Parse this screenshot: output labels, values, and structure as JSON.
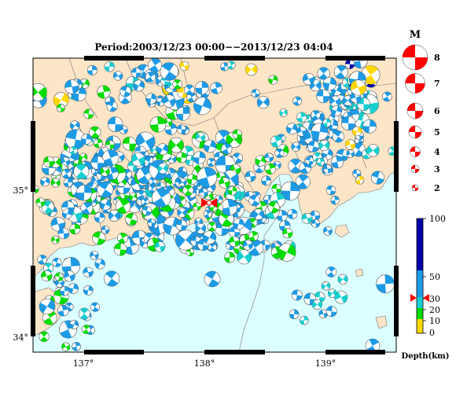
{
  "title": "Period:2003/12/23 00:00−−2013/12/23 04:04",
  "x_axis": {
    "ticks": [
      "137°",
      "138°",
      "139°"
    ]
  },
  "y_axis": {
    "ticks": [
      "35°",
      "34°"
    ]
  },
  "magnitude_legend": {
    "heading": "M",
    "items": [
      {
        "label": "8"
      },
      {
        "label": "7"
      },
      {
        "label": "6"
      },
      {
        "label": "5"
      },
      {
        "label": "4"
      },
      {
        "label": "3"
      },
      {
        "label": "2"
      }
    ],
    "color": "#ff0000"
  },
  "depth_legend": {
    "unit": "Depth(km)",
    "labels": [
      "100",
      "50",
      "30",
      "20",
      "10",
      "0"
    ],
    "colors": {
      "deep": "#0000aa",
      "mid": "#1e9be6",
      "shallow_mid": "#17cfcf",
      "shallow": "#00dd00",
      "surface": "#ffd700"
    },
    "marker_color": "#ff0000"
  },
  "map": {
    "land_color": "#fde5c8",
    "sea_color": "#dcffff",
    "lon_range": [
      136.55,
      139.6
    ],
    "lat_range": [
      33.9,
      35.68
    ]
  }
}
